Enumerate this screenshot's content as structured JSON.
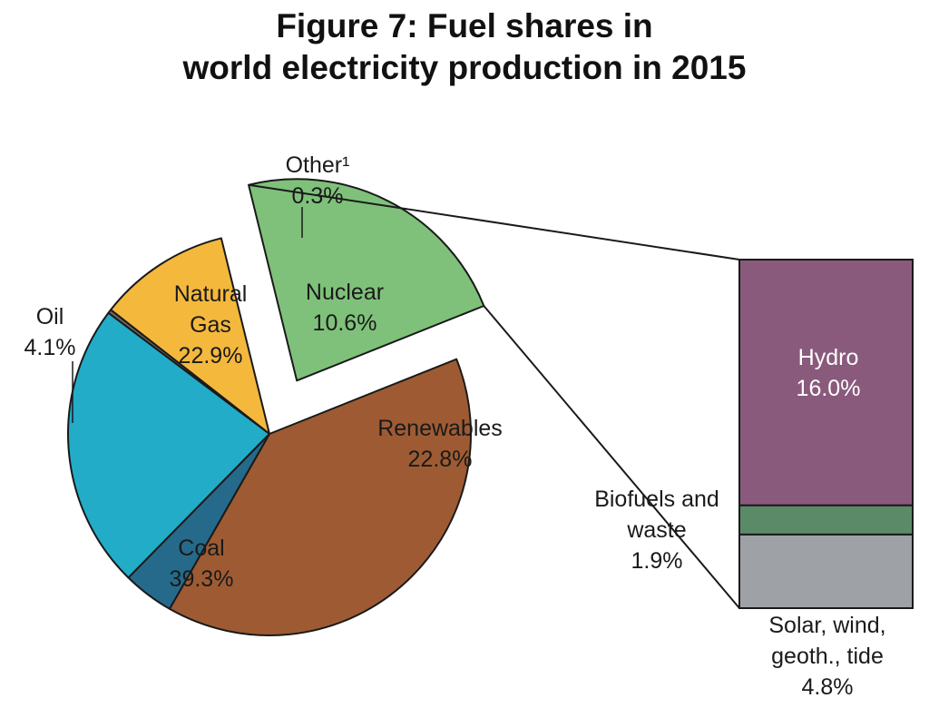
{
  "chart_data": {
    "type": "pie",
    "title": [
      "Figure 7: Fuel shares in",
      "world electricity production in 2015"
    ],
    "slices": [
      {
        "name": "Nuclear",
        "value": 10.6,
        "label": "10.6%",
        "color": "#F4B83D"
      },
      {
        "name": "Renewables",
        "value": 22.8,
        "label": "22.8%",
        "color": "#7FC17A",
        "exploded": true
      },
      {
        "name": "Coal",
        "value": 39.3,
        "label": "39.3%",
        "color": "#9E5B33"
      },
      {
        "name": "Oil",
        "value": 4.1,
        "label": "4.1%",
        "color": "#256A8A"
      },
      {
        "name": "Natural Gas",
        "value": 22.9,
        "label": "22.9%",
        "color": "#22ACC8"
      },
      {
        "name": "Other¹",
        "value": 0.3,
        "label": "0.3%",
        "color": "#6D6A5E"
      }
    ],
    "breakdown": {
      "parent": "Renewables",
      "type": "stacked-bar",
      "segments": [
        {
          "name": "Solar, wind, geoth., tide",
          "value": 4.8,
          "label": "4.8%",
          "color": "#9EA1A6"
        },
        {
          "name": "Biofuels and waste",
          "value": 1.9,
          "label": "1.9%",
          "color": "#5B8A68"
        },
        {
          "name": "Hydro",
          "value": 16.0,
          "label": "16.0%",
          "color": "#8A5A7C"
        }
      ]
    }
  }
}
